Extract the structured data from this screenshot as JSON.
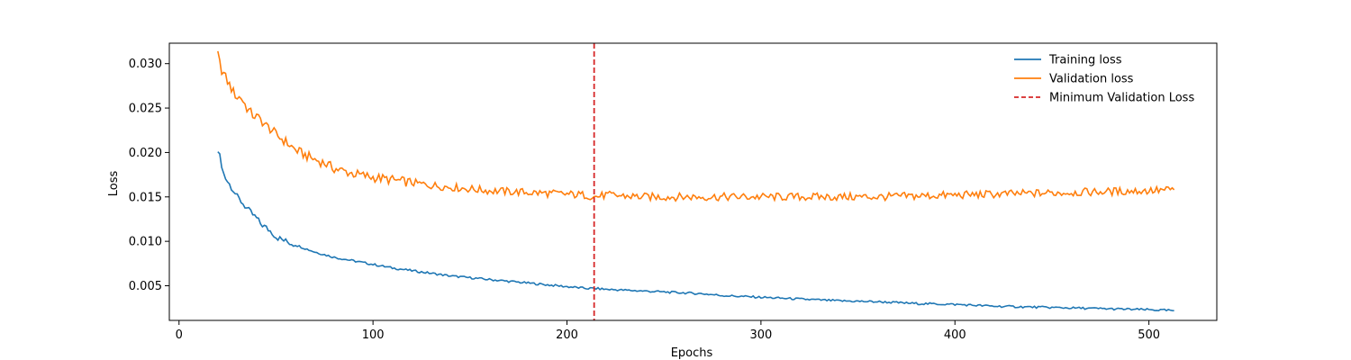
{
  "chart_data": {
    "type": "line",
    "title": "",
    "xlabel": "Epochs",
    "ylabel": "Loss",
    "xlim": [
      -5,
      535
    ],
    "ylim": [
      0.0011,
      0.0323
    ],
    "x_ticks": [
      0,
      100,
      200,
      300,
      400,
      500
    ],
    "x_tick_labels": [
      "0",
      "100",
      "200",
      "300",
      "400",
      "500"
    ],
    "y_ticks": [
      0.005,
      0.01,
      0.015,
      0.02,
      0.025,
      0.03
    ],
    "y_tick_labels": [
      "0.005",
      "0.010",
      "0.015",
      "0.020",
      "0.025",
      "0.030"
    ],
    "grid": false,
    "legend_position": "top-right",
    "series": [
      {
        "name": "Training loss",
        "color": "#1f77b4",
        "style": "solid",
        "x": [
          20,
          21,
          22,
          25,
          28,
          30,
          32,
          35,
          38,
          40,
          42,
          45,
          48,
          50,
          55,
          60,
          65,
          70,
          75,
          80,
          90,
          100,
          110,
          120,
          130,
          140,
          150,
          160,
          170,
          180,
          190,
          200,
          210,
          214,
          220,
          230,
          240,
          250,
          260,
          270,
          280,
          290,
          300,
          320,
          340,
          360,
          380,
          400,
          420,
          440,
          460,
          480,
          500,
          513
        ],
        "y": [
          0.0199,
          0.0198,
          0.0182,
          0.0168,
          0.0158,
          0.015,
          0.0145,
          0.0137,
          0.013,
          0.0126,
          0.012,
          0.0115,
          0.011,
          0.0105,
          0.01,
          0.0096,
          0.0092,
          0.0088,
          0.0085,
          0.0082,
          0.0078,
          0.0074,
          0.007,
          0.0067,
          0.0064,
          0.0061,
          0.0059,
          0.0057,
          0.0055,
          0.0053,
          0.0051,
          0.0049,
          0.0047,
          0.0047,
          0.0046,
          0.0045,
          0.0044,
          0.0043,
          0.0042,
          0.0041,
          0.0039,
          0.0038,
          0.0037,
          0.0035,
          0.0033,
          0.0032,
          0.003,
          0.0029,
          0.0027,
          0.0026,
          0.0025,
          0.0024,
          0.0023,
          0.0022
        ]
      },
      {
        "name": "Validation loss",
        "color": "#ff7f0e",
        "style": "solid",
        "x": [
          20,
          21,
          22,
          25,
          28,
          30,
          32,
          35,
          38,
          40,
          42,
          45,
          48,
          50,
          55,
          60,
          65,
          70,
          75,
          80,
          90,
          100,
          110,
          120,
          130,
          140,
          150,
          160,
          170,
          180,
          190,
          200,
          210,
          214,
          220,
          230,
          240,
          250,
          260,
          270,
          280,
          290,
          300,
          320,
          340,
          360,
          380,
          400,
          420,
          440,
          460,
          480,
          500,
          513
        ],
        "y": [
          0.031,
          0.03,
          0.0293,
          0.028,
          0.0268,
          0.0262,
          0.0262,
          0.025,
          0.0242,
          0.024,
          0.0237,
          0.023,
          0.0225,
          0.022,
          0.0212,
          0.0203,
          0.0197,
          0.0192,
          0.0188,
          0.0182,
          0.0176,
          0.0172,
          0.0169,
          0.0166,
          0.0163,
          0.0161,
          0.0159,
          0.0157,
          0.0156,
          0.0155,
          0.0154,
          0.0153,
          0.0152,
          0.015,
          0.0152,
          0.0151,
          0.015,
          0.015,
          0.015,
          0.015,
          0.015,
          0.015,
          0.015,
          0.015,
          0.015,
          0.015,
          0.0151,
          0.0152,
          0.0153,
          0.0154,
          0.0155,
          0.0156,
          0.0157,
          0.0158
        ]
      }
    ],
    "vertical_lines": [
      {
        "name": "Minimum Validation Loss",
        "x": 214,
        "color": "#d62728",
        "style": "dashed"
      }
    ]
  }
}
